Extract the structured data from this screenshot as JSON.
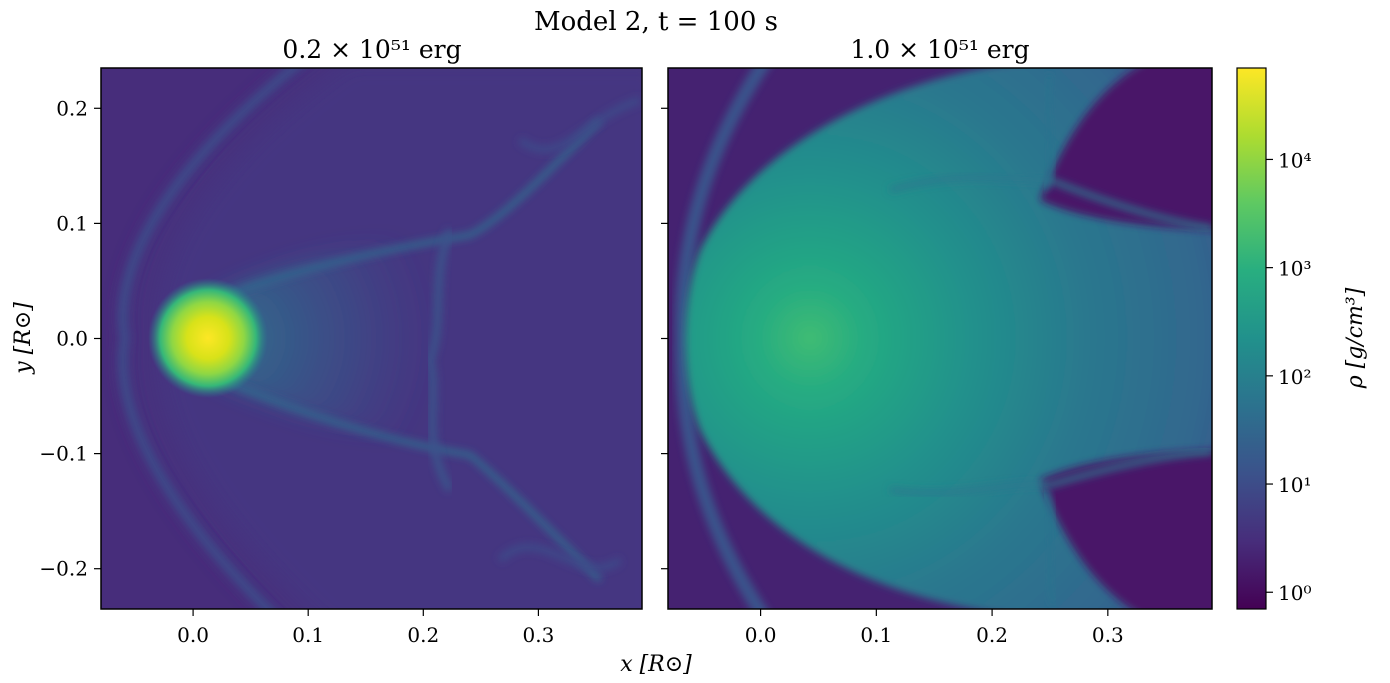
{
  "chart_data": {
    "type": "heatmap",
    "title": "Model 2, t = 100 s",
    "xlabel": "x [R⊙]",
    "ylabel": "y [R⊙]",
    "colorbar_label": "ρ [g/cm³]",
    "colorbar": {
      "scale": "log",
      "range": [
        0.7,
        70000
      ],
      "ticks": [
        1,
        10,
        100,
        1000,
        10000
      ],
      "tick_labels": [
        "10⁰",
        "10¹",
        "10²",
        "10³",
        "10⁴"
      ],
      "colormap": [
        "#440154",
        "#472d7b",
        "#3b528b",
        "#2c728e",
        "#21918c",
        "#28ae80",
        "#5ec962",
        "#addc30",
        "#fde725"
      ]
    },
    "panels": [
      {
        "subtitle": "0.2 × 10⁵¹ erg",
        "xlim": [
          -0.08,
          0.39
        ],
        "ylim": [
          -0.235,
          0.235
        ],
        "xticks": [
          0.0,
          0.1,
          0.2,
          0.3
        ],
        "xtick_labels": [
          "0.0",
          "0.1",
          "0.2",
          "0.3"
        ],
        "yticks": [
          -0.2,
          -0.1,
          0.0,
          0.1,
          0.2
        ],
        "ytick_labels": [
          "−0.2",
          "−0.1",
          "0.0",
          "0.1",
          "0.2"
        ],
        "core_center": [
          0.015,
          0.0
        ],
        "peak_density": 60000
      },
      {
        "subtitle": "1.0 × 10⁵¹ erg",
        "xlim": [
          -0.08,
          0.39
        ],
        "ylim": [
          -0.235,
          0.235
        ],
        "xticks": [
          0.0,
          0.1,
          0.2,
          0.3
        ],
        "xtick_labels": [
          "0.0",
          "0.1",
          "0.2",
          "0.3"
        ],
        "yticks": [
          -0.2,
          -0.1,
          0.0,
          0.1,
          0.2
        ],
        "ytick_labels": [],
        "core_center": [
          0.04,
          0.0
        ],
        "peak_density": 800
      }
    ]
  }
}
